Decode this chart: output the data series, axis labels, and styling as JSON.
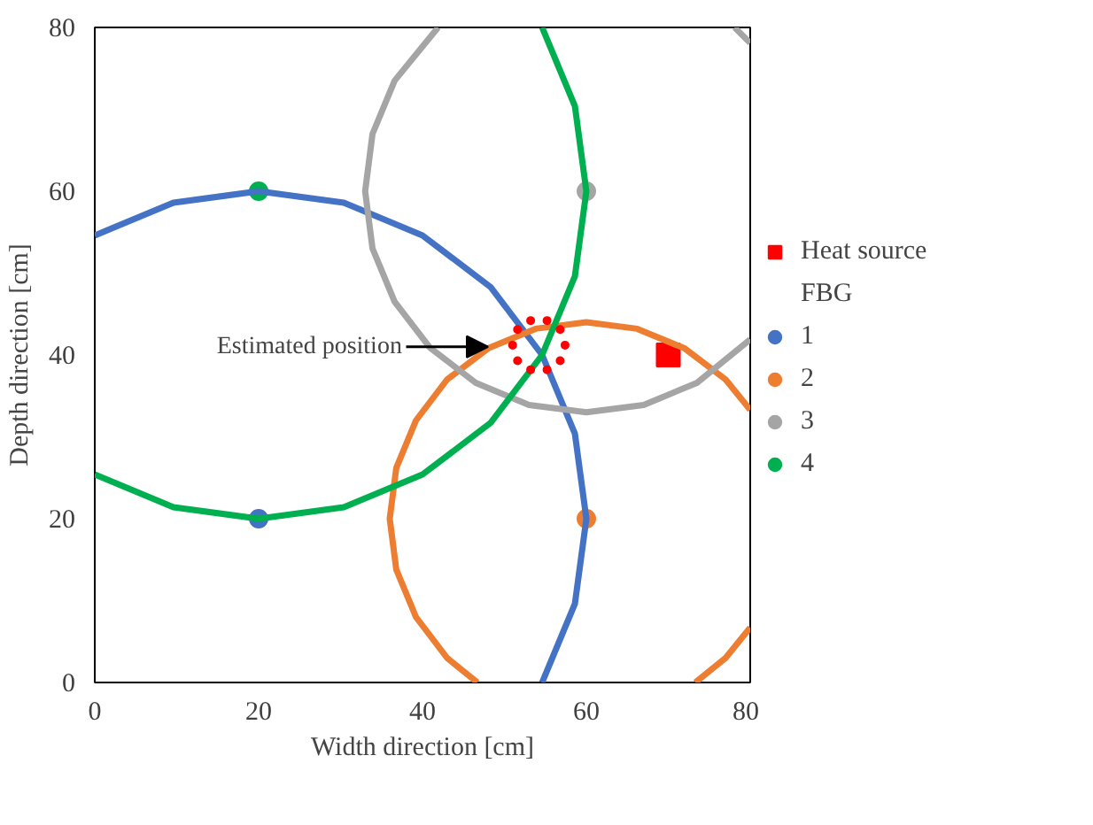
{
  "chart_data": {
    "type": "scatter",
    "xlabel": "Width direction [cm]",
    "ylabel": "Depth direction [cm]",
    "xlim": [
      0,
      80
    ],
    "ylim": [
      0,
      80
    ],
    "xticks": [
      0,
      20,
      40,
      60,
      80
    ],
    "yticks": [
      0,
      20,
      40,
      60,
      80
    ],
    "grid": false,
    "legend": "right",
    "legend_title": "FBG",
    "annotations": [
      {
        "text": "Estimated position",
        "x": 48,
        "y": 41
      }
    ],
    "series": [
      {
        "name": "Heat source",
        "marker": "square",
        "color": "#ff0000",
        "x": [
          70
        ],
        "values": [
          40
        ]
      },
      {
        "name": "1",
        "marker": "circle",
        "color": "#4472c4",
        "x": [
          20
        ],
        "values": [
          20
        ]
      },
      {
        "name": "2",
        "marker": "circle",
        "color": "#ed7d31",
        "x": [
          60
        ],
        "values": [
          20
        ]
      },
      {
        "name": "3",
        "marker": "circle",
        "color": "#a5a5a5",
        "x": [
          60
        ],
        "values": [
          60
        ]
      },
      {
        "name": "4",
        "marker": "circle",
        "color": "#00b050",
        "x": [
          20
        ],
        "values": [
          60
        ]
      },
      {
        "type": "line",
        "color": "#4472c4",
        "x": [
          54.6,
          58.6,
          60,
          58.6,
          54.6,
          48.3,
          40,
          30.4,
          20,
          9.6,
          0
        ],
        "values": [
          0,
          9.6,
          20,
          30.4,
          40,
          48.3,
          54.6,
          58.6,
          60,
          58.6,
          54.6
        ]
      },
      {
        "type": "line",
        "color": "#ed7d31",
        "x": [
          80,
          77,
          72,
          66.2,
          60,
          53.8,
          48,
          43,
          39.2,
          36.8,
          36,
          36.8,
          39.2,
          43,
          46.7,
          null,
          73.3,
          77,
          80
        ],
        "values": [
          33.3,
          37,
          40.8,
          43.2,
          44,
          43.2,
          40.8,
          37,
          32,
          26.2,
          20,
          13.8,
          8,
          3,
          0,
          null,
          0,
          3,
          6.7
        ]
      },
      {
        "type": "line",
        "color": "#a5a5a5",
        "x": [
          41.9,
          36.6,
          33.9,
          33,
          33.9,
          36.6,
          40.9,
          46.5,
          53,
          60,
          67,
          73.5,
          80,
          null,
          80,
          78.1
        ],
        "values": [
          80,
          73.5,
          67,
          60,
          53,
          46.5,
          40.9,
          36.6,
          33.9,
          33,
          33.9,
          36.6,
          41.9,
          null,
          78.1,
          80
        ]
      },
      {
        "type": "line",
        "color": "#00b050",
        "x": [
          0,
          9.6,
          20,
          30.4,
          40,
          48.3,
          54.6,
          58.6,
          60,
          58.6,
          54.6
        ],
        "values": [
          25.4,
          21.4,
          20,
          21.4,
          25.4,
          31.7,
          40,
          49.6,
          60,
          70.4,
          80
        ]
      },
      {
        "marker": "circle",
        "color": "#ff0000",
        "x": [
          57.4,
          56.8,
          55.2,
          53.2,
          51.6,
          51.0,
          51.6,
          53.2,
          55.2,
          56.8
        ],
        "values": [
          41.2,
          43.1,
          44.2,
          44.2,
          43.1,
          41.2,
          39.3,
          38.2,
          38.2,
          39.3
        ]
      }
    ]
  }
}
